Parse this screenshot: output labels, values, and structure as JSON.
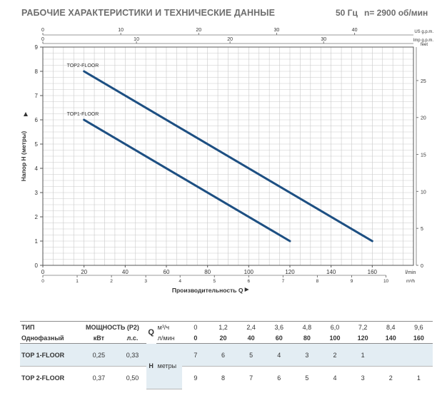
{
  "header": {
    "title": "РАБОЧИЕ ХАРАКТЕРИСТИКИ И ТЕХНИЧЕСКИЕ ДАННЫЕ",
    "frequency": "50 Гц",
    "speed": "n= 2900 об/мин"
  },
  "chart_data": {
    "type": "line",
    "xlabel": "Производительность Q",
    "ylabel": "Напор H (метры)",
    "x_unit": "l/min",
    "xlim": [
      0,
      180
    ],
    "ylim": [
      0,
      9
    ],
    "x_ticks": [
      0,
      20,
      40,
      60,
      80,
      100,
      120,
      140,
      160
    ],
    "y_ticks": [
      0,
      1,
      2,
      3,
      4,
      5,
      6,
      7,
      8,
      9
    ],
    "grid": true,
    "series": [
      {
        "name": "TOP2-FLOOR",
        "x": [
          20,
          160
        ],
        "y": [
          8,
          1
        ]
      },
      {
        "name": "TOP1-FLOOR",
        "x": [
          20,
          120
        ],
        "y": [
          6,
          1
        ]
      }
    ],
    "secondary_axes": {
      "us_gpm": {
        "label": "US g.p.m.",
        "ticks": [
          0,
          10,
          20,
          30,
          40
        ]
      },
      "imp_gpm": {
        "label": "Imp g.p.m.",
        "ticks": [
          0,
          10,
          20,
          30
        ]
      },
      "feet": {
        "label": "feet",
        "ticks": [
          0,
          5,
          10,
          15,
          20,
          25
        ]
      },
      "m3h": {
        "label": "m³/h",
        "ticks": [
          0,
          1,
          2,
          3,
          4,
          5,
          6,
          7,
          8,
          9,
          10
        ]
      }
    },
    "colors": {
      "line": "#1d4f82",
      "grid": "#c9c9c9",
      "frame": "#555555"
    }
  },
  "table": {
    "type_label": "ТИП",
    "phase_label": "Однофазный",
    "power_label": "МОЩНОСТЬ (P2)",
    "kw_label": "кВт",
    "hp_label": "л.с.",
    "q_symbol": "Q",
    "m3h_label": "м³/ч",
    "lmin_label": "л/мин",
    "h_label": "H",
    "h_unit": "метры",
    "q_m3h": [
      "0",
      "1,2",
      "2,4",
      "3,6",
      "4,8",
      "6,0",
      "7,2",
      "8,4",
      "9,6"
    ],
    "q_lmin": [
      "0",
      "20",
      "40",
      "60",
      "80",
      "100",
      "120",
      "140",
      "160"
    ],
    "rows": [
      {
        "model": "TOP 1-FLOOR",
        "kw": "0,25",
        "hp": "0,33",
        "h": [
          "7",
          "6",
          "5",
          "4",
          "3",
          "2",
          "1",
          "",
          ""
        ]
      },
      {
        "model": "TOP 2-FLOOR",
        "kw": "0,37",
        "hp": "0,50",
        "h": [
          "9",
          "8",
          "7",
          "6",
          "5",
          "4",
          "3",
          "2",
          "1"
        ]
      }
    ]
  }
}
